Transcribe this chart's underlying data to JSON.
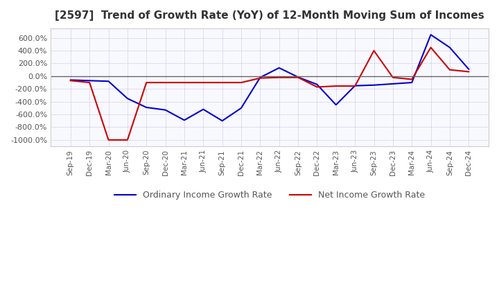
{
  "title": "[2597]  Trend of Growth Rate (YoY) of 12-Month Moving Sum of Incomes",
  "title_color": "#333333",
  "background_color": "#ffffff",
  "plot_bg_color": "#f8f8ff",
  "ylim": [
    -1100,
    750
  ],
  "yticks": [
    -1000,
    -800,
    -600,
    -400,
    -200,
    0,
    200,
    400,
    600
  ],
  "ytick_labels": [
    "-1000.0%",
    "-800.0%",
    "-600.0%",
    "-400.0%",
    "-200.0%",
    "0.0%",
    "200.0%",
    "400.0%",
    "600.0%"
  ],
  "line_blue_color": "#0000cc",
  "line_red_color": "#cc0000",
  "legend_labels": [
    "Ordinary Income Growth Rate",
    "Net Income Growth Rate"
  ],
  "x_dates": [
    "Sep-19",
    "Dec-19",
    "Mar-20",
    "Jun-20",
    "Sep-20",
    "Dec-20",
    "Mar-21",
    "Jun-21",
    "Sep-21",
    "Dec-21",
    "Mar-22",
    "Jun-22",
    "Sep-22",
    "Dec-22",
    "Mar-23",
    "Jun-23",
    "Sep-23",
    "Dec-23",
    "Mar-24",
    "Jun-24",
    "Sep-24",
    "Dec-24"
  ],
  "ordinary_income": [
    -60,
    -70,
    -80,
    -350,
    -490,
    -530,
    -690,
    -520,
    -700,
    -500,
    -20,
    130,
    -15,
    -130,
    -450,
    -150,
    -140,
    -120,
    -100,
    650,
    450,
    110
  ],
  "net_income": [
    -70,
    -100,
    -1000,
    -1000,
    -100,
    -100,
    -100,
    -100,
    -100,
    -100,
    -30,
    -20,
    -20,
    -170,
    -155,
    -155,
    400,
    -20,
    -50,
    450,
    100,
    70
  ]
}
